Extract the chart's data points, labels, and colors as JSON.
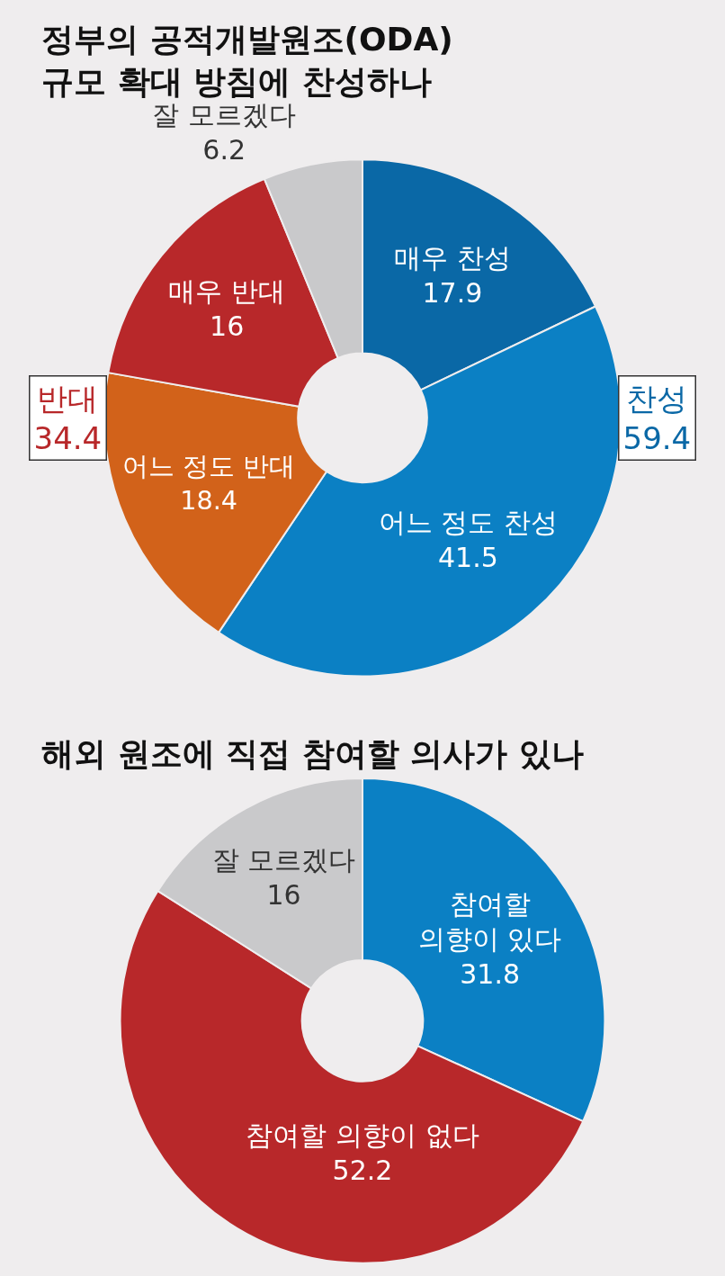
{
  "chart_data": [
    {
      "type": "donut",
      "title": "정부의 공적개발원조(ODA)\n규모 확대 방침에 찬성하나",
      "categories": [
        "매우 찬성",
        "어느 정도 찬성",
        "어느 정도 반대",
        "매우 반대",
        "잘 모르겠다"
      ],
      "values": [
        17.9,
        41.5,
        18.4,
        16,
        6.2
      ],
      "colors": [
        "#0a68a6",
        "#0b80c4",
        "#d2621a",
        "#b8282a",
        "#c9c9cb"
      ],
      "data_labels": true,
      "annotations": [
        "찬성\n59.4",
        "반대\n34.4"
      ]
    },
    {
      "type": "donut",
      "title": "해외 원조에 직접 참여할 의사가 있나",
      "categories": [
        "참여할\n의향이 있다",
        "참여할 의향이 없다",
        "잘 모르겠다"
      ],
      "values": [
        31.8,
        52.2,
        16
      ],
      "colors": [
        "#0b80c4",
        "#b8282a",
        "#c9c9cb"
      ],
      "data_labels": true
    }
  ]
}
